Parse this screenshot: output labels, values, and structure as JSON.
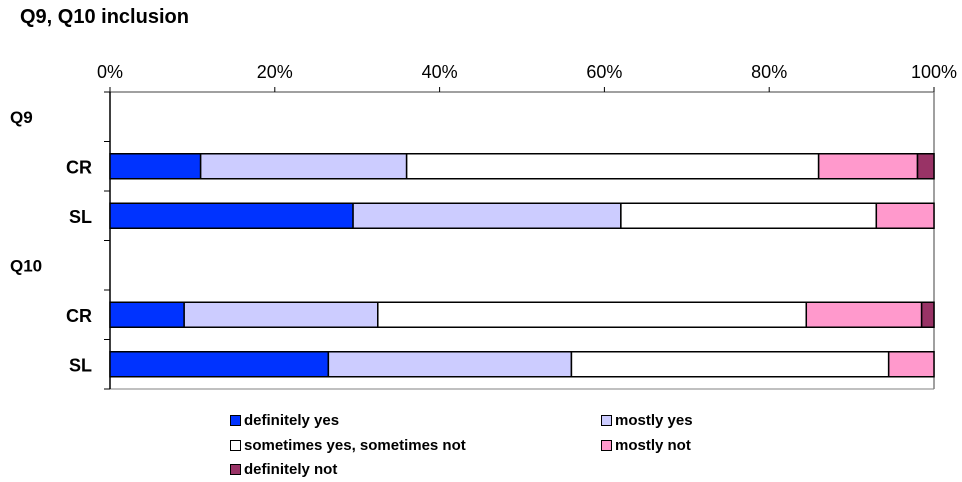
{
  "chart_data": {
    "type": "bar",
    "stacked": true,
    "orientation": "horizontal",
    "title": "Q9, Q10 inclusion",
    "xlim": [
      0,
      100
    ],
    "x_ticks": [
      "0%",
      "20%",
      "40%",
      "60%",
      "80%",
      "100%"
    ],
    "groups": [
      "Q9",
      "Q10"
    ],
    "rows": [
      {
        "label": "CR",
        "group": "Q9"
      },
      {
        "label": "SL",
        "group": "Q9"
      },
      {
        "label": "CR",
        "group": "Q10"
      },
      {
        "label": "SL",
        "group": "Q10"
      }
    ],
    "series": [
      {
        "name": "definitely yes",
        "color": "#0033ff",
        "values": [
          11,
          29.5,
          9,
          26.5
        ]
      },
      {
        "name": "mostly yes",
        "color": "#ccccff",
        "values": [
          25,
          32.5,
          23.5,
          29.5
        ]
      },
      {
        "name": "sometimes yes, sometimes not",
        "color": "#ffffff",
        "values": [
          50,
          31,
          52,
          38.5
        ]
      },
      {
        "name": "mostly not",
        "color": "#ff99cc",
        "values": [
          12,
          7,
          14,
          5.5
        ]
      },
      {
        "name": "definitely not",
        "color": "#993366",
        "values": [
          2,
          0,
          1.5,
          0
        ]
      }
    ],
    "grid": false,
    "legend_position": "bottom"
  }
}
